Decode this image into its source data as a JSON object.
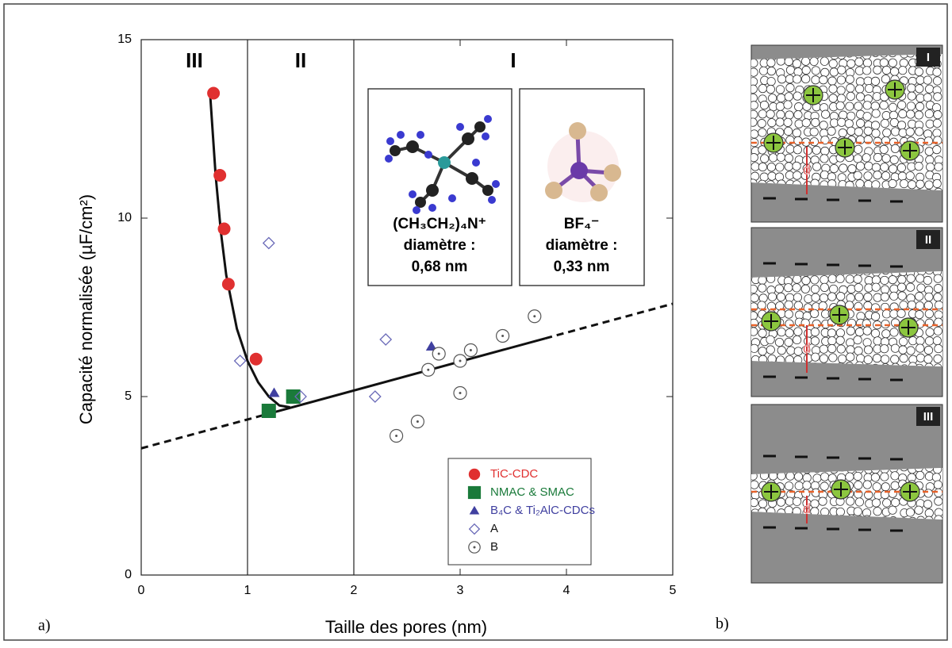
{
  "chart_data": {
    "type": "scatter",
    "xlabel": "Taille des pores (nm)",
    "ylabel": "Capacité normalisée (µF/cm²)",
    "xlim": [
      0,
      5
    ],
    "ylim": [
      0,
      15
    ],
    "xticks": [
      0,
      1,
      2,
      3,
      4,
      5
    ],
    "yticks": [
      0,
      5,
      10,
      15
    ],
    "series": [
      {
        "name": "TiC-CDC",
        "color": "#e03030",
        "marker": "circle",
        "x": [
          0.68,
          0.74,
          0.78,
          0.82,
          1.08
        ],
        "values": [
          13.5,
          11.2,
          9.7,
          8.15,
          6.05
        ]
      },
      {
        "name": "NMAC  & SMAC",
        "color": "#1a7a3a",
        "marker": "square",
        "x": [
          1.2,
          1.43
        ],
        "values": [
          4.6,
          5.0
        ]
      },
      {
        "name": "B₄C & Ti₂AlC-CDCs",
        "color": "#4040a0",
        "marker": "triangle",
        "x": [
          1.25,
          2.73
        ],
        "values": [
          5.1,
          6.4
        ]
      },
      {
        "name": "A",
        "color": "#6a6ab8",
        "marker": "diamond",
        "x": [
          0.93,
          1.2,
          1.5,
          2.2,
          2.3
        ],
        "values": [
          6.0,
          9.3,
          5.0,
          5.0,
          6.6
        ]
      },
      {
        "name": "B",
        "color": "#555555",
        "marker": "dotcircle",
        "x": [
          2.4,
          2.6,
          2.7,
          2.8,
          3.0,
          3.0,
          3.1,
          3.4,
          3.7
        ],
        "values": [
          3.9,
          4.3,
          5.75,
          6.2,
          6.0,
          5.1,
          6.3,
          6.7,
          7.25
        ]
      }
    ],
    "curves": [
      {
        "dash": true,
        "x": [
          0,
          1.2
        ],
        "values": [
          3.55,
          4.52
        ]
      },
      {
        "dash": false,
        "x": [
          1.2,
          3.8
        ],
        "values": [
          4.52,
          6.63
        ]
      },
      {
        "dash": true,
        "x": [
          3.8,
          5
        ],
        "values": [
          6.63,
          7.6
        ]
      },
      {
        "dash": false,
        "x": [
          0.65,
          0.7,
          0.75,
          0.8,
          0.9,
          1.0,
          1.1,
          1.2,
          1.3,
          1.4
        ],
        "values": [
          13.4,
          11.2,
          9.6,
          8.4,
          6.9,
          6.0,
          5.4,
          5.0,
          4.75,
          4.7
        ]
      }
    ],
    "region_bounds": [
      1,
      2
    ],
    "region_labels": [
      "III",
      "II",
      "I"
    ]
  },
  "insets": [
    {
      "formula": "(CH₃CH₂)₄N⁺",
      "label": "diamètre :",
      "size": "0,68 nm"
    },
    {
      "formula": "BF₄⁻",
      "label": "diamètre :",
      "size": "0,33 nm"
    }
  ],
  "panel_labels": [
    "a)",
    "b)"
  ],
  "schematic": [
    {
      "label": "I",
      "gap": "d"
    },
    {
      "label": "II",
      "gap": "d"
    },
    {
      "label": "III",
      "gap": "d"
    }
  ]
}
